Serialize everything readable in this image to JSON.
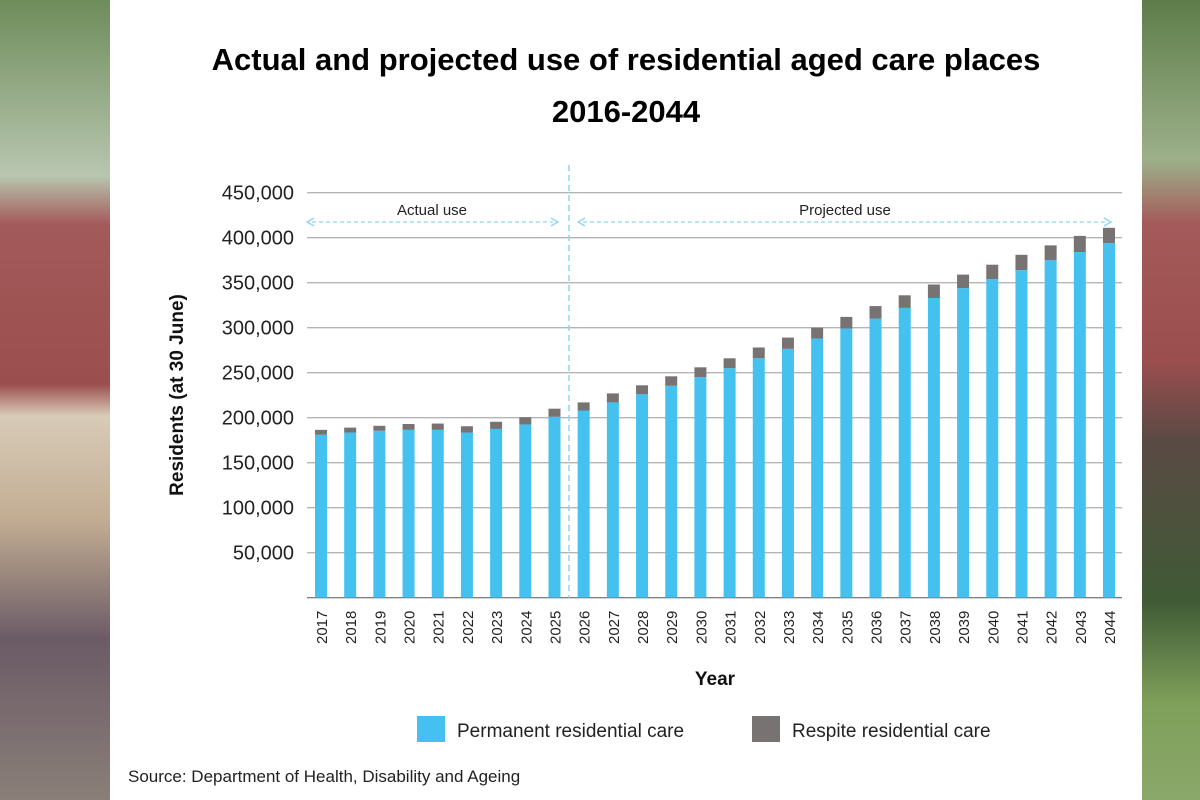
{
  "title_line1": "Actual and projected use of residential aged care places",
  "title_line2": "2016-2044",
  "source": "Source: Department of Health, Disability and Ageing",
  "chart_data": {
    "type": "bar",
    "stacked": true,
    "xlabel": "Year",
    "ylabel": "Residents (at 30 June)",
    "ylim": [
      0,
      450000
    ],
    "yticks": [
      "50,000",
      "100,000",
      "150,000",
      "200,000",
      "250,000",
      "300,000",
      "350,000",
      "400,000",
      "450,000"
    ],
    "grid": true,
    "legend_position": "bottom",
    "annotations": {
      "actual": "Actual use",
      "projected": "Projected use"
    },
    "categories": [
      "2017",
      "2018",
      "2019",
      "2020",
      "2021",
      "2022",
      "2023",
      "2024",
      "2025",
      "2026",
      "2027",
      "2028",
      "2029",
      "2030",
      "2031",
      "2032",
      "2033",
      "2034",
      "2035",
      "2036",
      "2037",
      "2038",
      "2039",
      "2040",
      "2041",
      "2042",
      "2043",
      "2044"
    ],
    "series": [
      {
        "name": "Permanent residential care",
        "color": "#45c1f0",
        "values": [
          181000,
          183500,
          185500,
          186500,
          186500,
          183500,
          187500,
          192500,
          201000,
          208000,
          217000,
          226000,
          235500,
          245000,
          255000,
          266000,
          276500,
          288000,
          299000,
          310000,
          322000,
          333000,
          344000,
          354000,
          364000,
          375000,
          384000,
          394000
        ]
      },
      {
        "name": "Respite residential care",
        "color": "#777373",
        "values": [
          5500,
          5500,
          5500,
          6500,
          7000,
          7000,
          8000,
          8000,
          9000,
          9000,
          10000,
          10000,
          10500,
          11000,
          11000,
          12000,
          12500,
          12000,
          13000,
          14000,
          14000,
          15000,
          15000,
          16000,
          17000,
          16500,
          18000,
          17000
        ]
      }
    ]
  }
}
